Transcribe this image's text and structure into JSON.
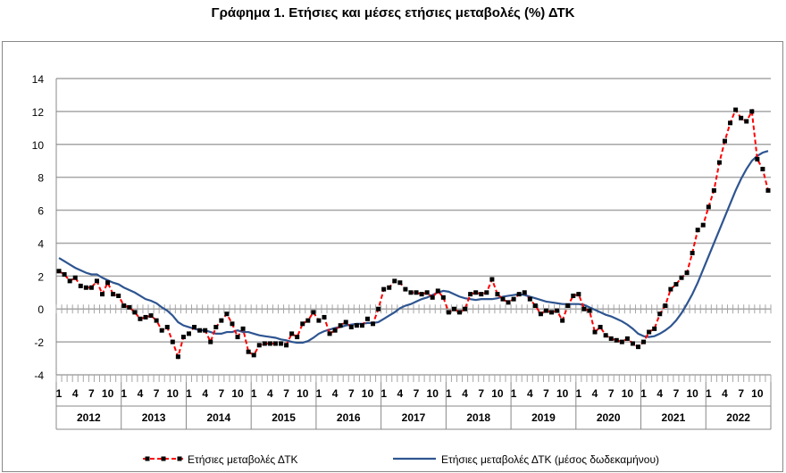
{
  "title": "Γράφημα 1. Ετήσιες και μέσες ετήσιες μεταβολές (%) ΔΤΚ",
  "chart_data": {
    "type": "line",
    "title": "Γράφημα 1. Ετήσιες και μέσες ετήσιες μεταβολές (%) ΔΤΚ",
    "xlabel": "",
    "ylabel": "",
    "ylim": [
      -4,
      14
    ],
    "yticks": [
      "14",
      "12",
      "10",
      "8",
      "6",
      "4",
      "2",
      "0",
      "-2",
      "-4"
    ],
    "month_ticks": [
      "1",
      "4",
      "7",
      "10"
    ],
    "years": [
      "2012",
      "2013",
      "2014",
      "2015",
      "2016",
      "2017",
      "2018",
      "2019",
      "2020",
      "2021",
      "2022"
    ],
    "grid": true,
    "legend": "bottom",
    "series": [
      {
        "name": "Ετήσιες μεταβολές ΔΤΚ",
        "color": "#ff0000",
        "marker_color": "#000000",
        "style": "dashed-markers",
        "values": [
          2.3,
          2.1,
          1.7,
          1.9,
          1.4,
          1.3,
          1.3,
          1.7,
          0.9,
          1.6,
          0.9,
          0.8,
          0.2,
          0.1,
          -0.2,
          -0.6,
          -0.5,
          -0.4,
          -0.7,
          -1.3,
          -1.1,
          -2.0,
          -2.9,
          -1.7,
          -1.5,
          -1.1,
          -1.3,
          -1.3,
          -2.0,
          -1.1,
          -0.7,
          -0.3,
          -0.9,
          -1.7,
          -1.2,
          -2.6,
          -2.8,
          -2.2,
          -2.1,
          -2.1,
          -2.1,
          -2.1,
          -2.2,
          -1.5,
          -1.7,
          -0.9,
          -0.7,
          -0.2,
          -0.7,
          -0.5,
          -1.5,
          -1.3,
          -1.0,
          -0.8,
          -1.1,
          -1.0,
          -1.0,
          -0.6,
          -0.9,
          0.0,
          1.2,
          1.3,
          1.7,
          1.6,
          1.2,
          1.0,
          1.0,
          0.9,
          1.0,
          0.7,
          1.1,
          0.7,
          -0.2,
          0.0,
          -0.2,
          0.0,
          0.9,
          1.0,
          0.9,
          1.0,
          1.8,
          0.9,
          0.6,
          0.4,
          0.6,
          0.9,
          1.0,
          0.6,
          0.2,
          -0.3,
          -0.1,
          -0.2,
          -0.1,
          -0.7,
          0.2,
          0.8,
          0.9,
          0.0,
          -0.1,
          -1.4,
          -1.1,
          -1.6,
          -1.8,
          -1.9,
          -2.0,
          -1.8,
          -2.1,
          -2.3,
          -2.0,
          -1.4,
          -1.2,
          -0.3,
          0.2,
          1.2,
          1.5,
          1.9,
          2.2,
          3.4,
          4.8,
          5.1,
          6.2,
          7.2,
          8.9,
          10.2,
          11.3,
          12.1,
          11.6,
          11.4,
          12.0,
          9.1,
          8.5,
          7.2
        ]
      },
      {
        "name": "Ετήσιες μεταβολές ΔΤΚ (μέσος δωδεκαμήνου)",
        "color": "#2e5590",
        "style": "solid",
        "values": [
          3.1,
          2.9,
          2.7,
          2.5,
          2.35,
          2.2,
          2.1,
          2.1,
          1.9,
          1.75,
          1.6,
          1.5,
          1.3,
          1.15,
          1.0,
          0.8,
          0.6,
          0.5,
          0.35,
          0.1,
          -0.1,
          -0.4,
          -0.8,
          -1.0,
          -1.1,
          -1.2,
          -1.3,
          -1.3,
          -1.4,
          -1.5,
          -1.5,
          -1.4,
          -1.4,
          -1.3,
          -1.4,
          -1.4,
          -1.5,
          -1.6,
          -1.65,
          -1.7,
          -1.75,
          -1.85,
          -1.9,
          -2.0,
          -2.05,
          -2.05,
          -1.95,
          -1.75,
          -1.5,
          -1.35,
          -1.25,
          -1.15,
          -1.1,
          -1.0,
          -0.95,
          -0.9,
          -0.9,
          -0.85,
          -0.85,
          -0.8,
          -0.6,
          -0.4,
          -0.2,
          0.05,
          0.2,
          0.3,
          0.45,
          0.6,
          0.7,
          0.85,
          1.0,
          1.1,
          1.05,
          0.9,
          0.75,
          0.65,
          0.6,
          0.55,
          0.6,
          0.6,
          0.6,
          0.65,
          0.75,
          0.8,
          0.85,
          0.9,
          0.85,
          0.75,
          0.65,
          0.55,
          0.45,
          0.4,
          0.35,
          0.3,
          0.3,
          0.3,
          0.3,
          0.25,
          0.1,
          -0.05,
          -0.2,
          -0.35,
          -0.45,
          -0.6,
          -0.75,
          -0.95,
          -1.2,
          -1.5,
          -1.65,
          -1.7,
          -1.65,
          -1.5,
          -1.3,
          -1.05,
          -0.7,
          -0.25,
          0.3,
          0.9,
          1.6,
          2.4,
          3.2,
          4.0,
          4.8,
          5.6,
          6.4,
          7.2,
          7.9,
          8.5,
          9.0,
          9.3,
          9.5,
          9.6
        ]
      }
    ]
  }
}
